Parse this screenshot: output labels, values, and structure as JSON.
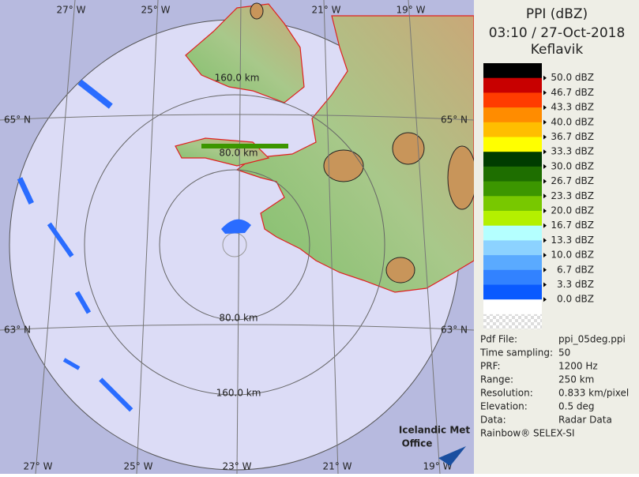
{
  "header": {
    "title": "PPI (dBZ)",
    "datetime": "03:10 / 27-Oct-2018",
    "station": "Keflavik"
  },
  "legend": [
    {
      "label": "50.0 dBZ",
      "color": "#000000"
    },
    {
      "label": "46.7 dBZ",
      "color": "#c80000"
    },
    {
      "label": "43.3 dBZ",
      "color": "#ff3c00"
    },
    {
      "label": "40.0 dBZ",
      "color": "#ff8c00"
    },
    {
      "label": "36.7 dBZ",
      "color": "#ffbe00"
    },
    {
      "label": "33.3 dBZ",
      "color": "#ffff00"
    },
    {
      "label": "30.0 dBZ",
      "color": "#003c00"
    },
    {
      "label": "26.7 dBZ",
      "color": "#1e6e00"
    },
    {
      "label": "23.3 dBZ",
      "color": "#3c9600"
    },
    {
      "label": "20.0 dBZ",
      "color": "#78c800"
    },
    {
      "label": "16.7 dBZ",
      "color": "#b4f000"
    },
    {
      "label": "13.3 dBZ",
      "color": "#b4ffff"
    },
    {
      "label": "10.0 dBZ",
      "color": "#8cd2ff"
    },
    {
      "label": "6.7 dBZ",
      "color": "#5aaaff"
    },
    {
      "label": "3.3 dBZ",
      "color": "#3282ff"
    },
    {
      "label": "0.0 dBZ",
      "color": "#0a5aff"
    }
  ],
  "info": [
    {
      "label": "Pdf File:",
      "value": "ppi_05deg.ppi"
    },
    {
      "label": "Time sampling:",
      "value": "50"
    },
    {
      "label": "PRF:",
      "value": "1200 Hz"
    },
    {
      "label": "Range:",
      "value": "250 km"
    },
    {
      "label": "Resolution:",
      "value": "0.833 km/pixel"
    },
    {
      "label": "Elevation:",
      "value": "0.5 deg"
    },
    {
      "label": "Data:",
      "value": "Radar Data"
    }
  ],
  "software": "Rainbow® SELEX-SI",
  "map": {
    "lon_labels_top": [
      "27° W",
      "25° W",
      "21° W",
      "19° W"
    ],
    "lon_labels_bottom": [
      "27° W",
      "25° W",
      "23° W",
      "21° W",
      "19° W"
    ],
    "lat_labels_left": [
      "65° N",
      "63° N"
    ],
    "lat_labels_right": [
      "65° N",
      "63° N"
    ],
    "range_labels": [
      "160.0 km",
      "80.0 km",
      "80.0 km",
      "160.0 km"
    ],
    "logo": [
      "Icelandic Met",
      "Office"
    ]
  }
}
